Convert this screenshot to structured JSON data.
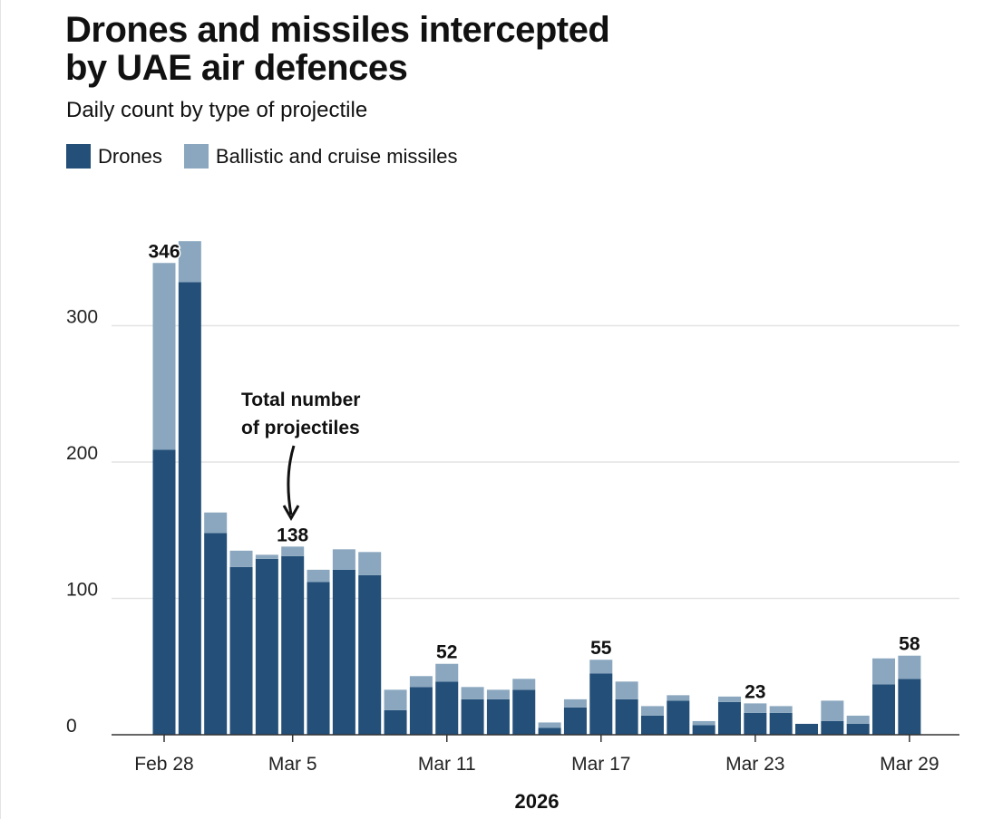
{
  "title_line1": "Drones and missiles intercepted",
  "title_line2": "by UAE air defences",
  "subtitle": "Daily count by type of projectile",
  "colors": {
    "drones": "#234f78",
    "missiles": "#8aa7bf"
  },
  "chart_data": {
    "type": "bar",
    "stacked": true,
    "xlabel": "2026",
    "ylabel": "",
    "ylim": [
      0,
      370
    ],
    "yticks": [
      0,
      100,
      200,
      300
    ],
    "grid": true,
    "legend": "top-left",
    "categories": [
      "Feb 28",
      "Mar 1",
      "Mar 2",
      "Mar 3",
      "Mar 4",
      "Mar 5",
      "Mar 6",
      "Mar 7",
      "Mar 8",
      "Mar 9",
      "Mar 10",
      "Mar 11",
      "Mar 12",
      "Mar 13",
      "Mar 14",
      "Mar 15",
      "Mar 16",
      "Mar 17",
      "Mar 18",
      "Mar 19",
      "Mar 20",
      "Mar 21",
      "Mar 22",
      "Mar 23",
      "Mar 24",
      "Mar 25",
      "Mar 26",
      "Mar 27",
      "Mar 28",
      "Mar 29"
    ],
    "xtick_labels": [
      {
        "index": 0,
        "label": "Feb 28"
      },
      {
        "index": 5,
        "label": "Mar 5"
      },
      {
        "index": 11,
        "label": "Mar 11"
      },
      {
        "index": 17,
        "label": "Mar 17"
      },
      {
        "index": 23,
        "label": "Mar 23"
      },
      {
        "index": 29,
        "label": "Mar 29"
      }
    ],
    "series": [
      {
        "name": "Drones",
        "values": [
          209,
          332,
          148,
          123,
          129,
          131,
          112,
          121,
          117,
          18,
          35,
          39,
          26,
          26,
          33,
          5,
          20,
          45,
          26,
          14,
          25,
          7,
          24,
          16,
          16,
          8,
          10,
          8,
          37,
          41
        ]
      },
      {
        "name": "Ballistic and cruise missiles",
        "values": [
          137,
          30,
          15,
          12,
          3,
          7,
          9,
          15,
          17,
          15,
          8,
          13,
          9,
          7,
          8,
          4,
          6,
          10,
          13,
          7,
          4,
          3,
          4,
          7,
          5,
          0,
          15,
          6,
          19,
          17
        ]
      }
    ],
    "data_labels": [
      {
        "index": 0,
        "label": "346"
      },
      {
        "index": 5,
        "label": "138"
      },
      {
        "index": 11,
        "label": "52"
      },
      {
        "index": 17,
        "label": "55"
      },
      {
        "index": 23,
        "label": "23"
      },
      {
        "index": 29,
        "label": "58"
      }
    ],
    "annotations": [
      {
        "text_line1": "Total number",
        "text_line2": "of projectiles",
        "points_to_index": 5
      }
    ]
  }
}
